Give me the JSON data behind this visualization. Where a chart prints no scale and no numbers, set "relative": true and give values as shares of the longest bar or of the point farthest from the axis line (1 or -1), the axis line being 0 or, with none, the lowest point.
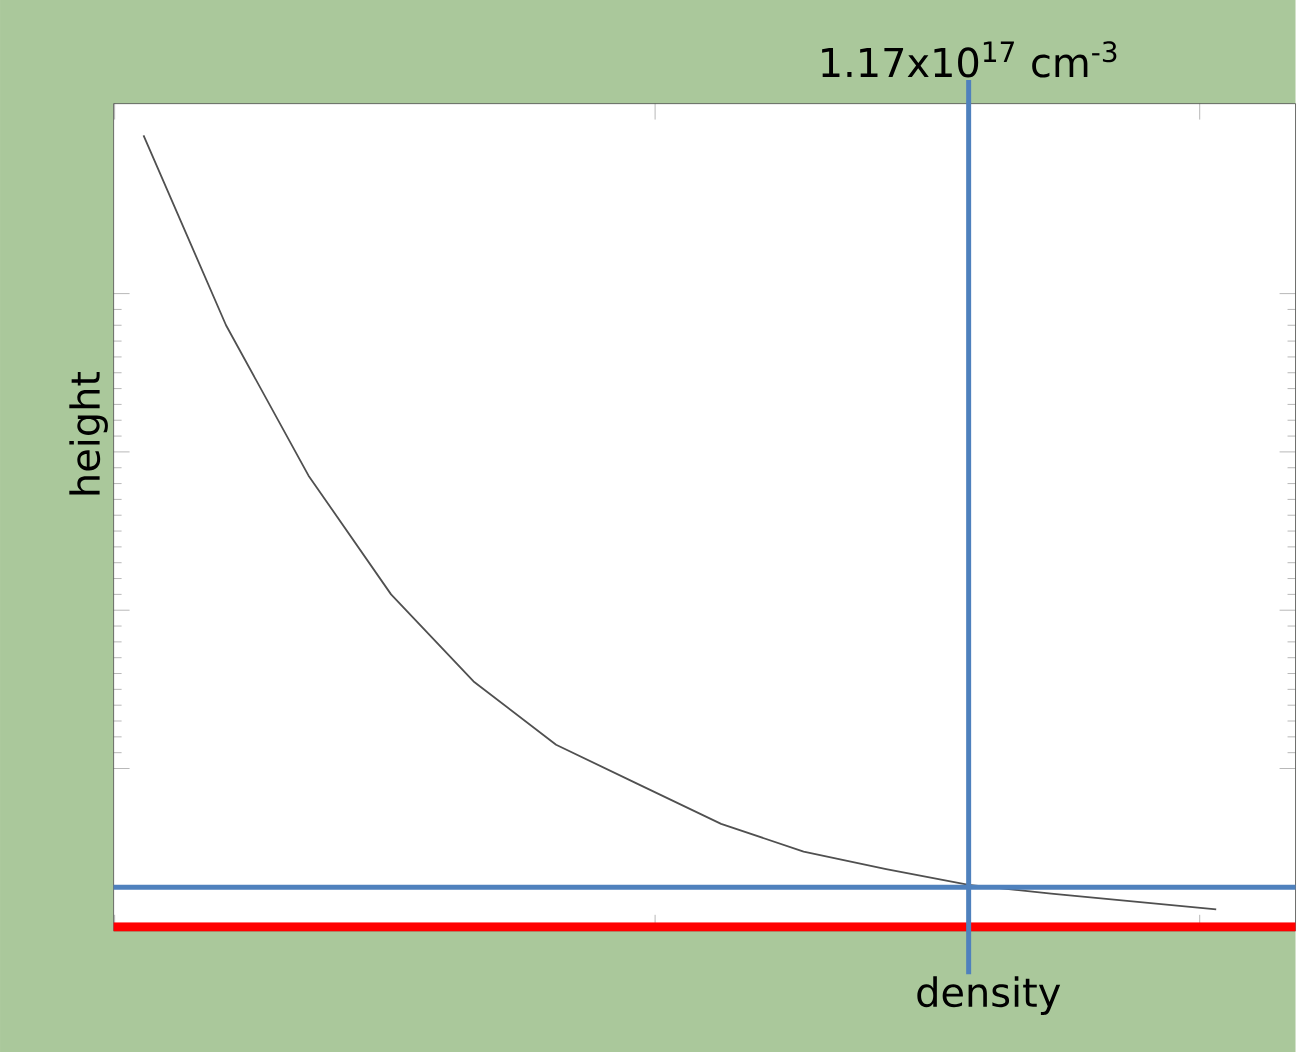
{
  "chart_data": {
    "type": "line",
    "xlabel": "density",
    "ylabel": "height",
    "relative": true,
    "categories": [
      null,
      null,
      null,
      null,
      null,
      null,
      null,
      null,
      null,
      null,
      null,
      null,
      null,
      null
    ],
    "series": [
      {
        "color": "#505050",
        "values": [
          1.0,
          0.76,
          0.57,
          0.42,
          0.31,
          0.23,
          0.18,
          0.13,
          0.095,
          0.073,
          0.053,
          0.042,
          0.032,
          0.022
        ]
      }
    ],
    "annotations": [
      "1.17x10$^{17}$ cm$^{-3}$"
    ],
    "ref_lines": [
      {
        "axis": "y",
        "value": 0.05,
        "color": "#4f81bd"
      },
      {
        "axis": "y",
        "value": 0,
        "color": "#ff0000"
      }
    ],
    "tick_labels": false,
    "grid": false,
    "marker": "none",
    "line_style": "solid"
  }
}
